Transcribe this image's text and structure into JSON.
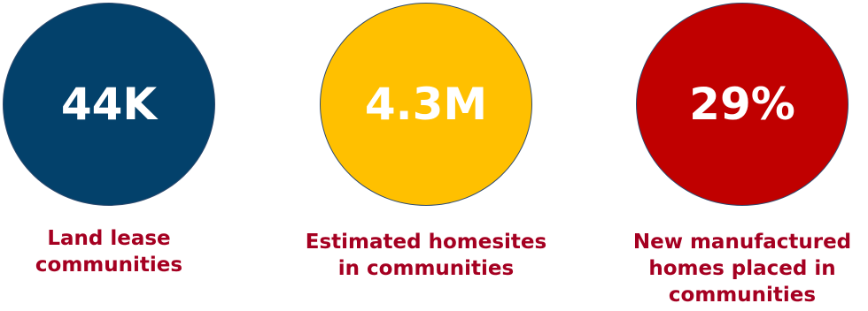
{
  "colors": {
    "circle_1": "#03416b",
    "circle_2": "#ffc000",
    "circle_3": "#c00000",
    "label_text": "#a50021",
    "value_text": "#ffffff",
    "circle_outline": "#2e4a6e"
  },
  "stats": [
    {
      "value": "44K",
      "label_lines": [
        "Land lease",
        "communities"
      ]
    },
    {
      "value": "4.3M",
      "label_lines": [
        "Estimated homesites",
        "in communities"
      ]
    },
    {
      "value": "29%",
      "label_lines": [
        "New manufactured",
        "homes placed in",
        "communities"
      ]
    }
  ]
}
